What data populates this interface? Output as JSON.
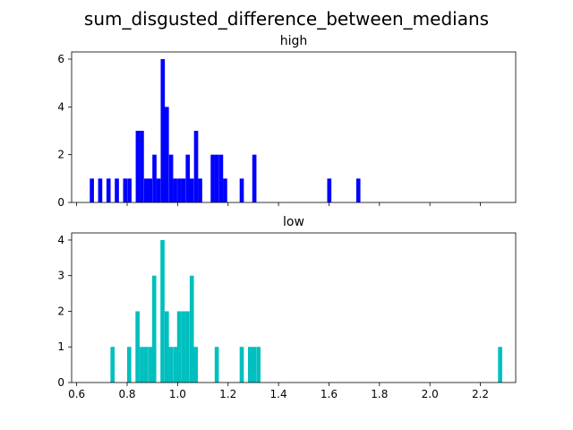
{
  "chart_data": [
    {
      "type": "bar",
      "subplot": "top",
      "suptitle": "sum_disgusted_difference_between_medians",
      "title": "high",
      "color": "#0000ff",
      "xlim": [
        0.58,
        2.34
      ],
      "ylim": [
        0,
        6.3
      ],
      "bin_width": 0.0165,
      "xticks": [
        0.6,
        0.8,
        1.0,
        1.2,
        1.4,
        1.6,
        1.8,
        2.0,
        2.2
      ],
      "xtick_labels_visible": false,
      "yticks": [
        0,
        2,
        4,
        6
      ],
      "ytick_labels": [
        "0",
        "2",
        "4",
        "6"
      ],
      "bars": [
        {
          "x": 0.652,
          "y": 1
        },
        {
          "x": 0.685,
          "y": 1
        },
        {
          "x": 0.718,
          "y": 1
        },
        {
          "x": 0.751,
          "y": 1
        },
        {
          "x": 0.784,
          "y": 1
        },
        {
          "x": 0.801,
          "y": 1
        },
        {
          "x": 0.834,
          "y": 3
        },
        {
          "x": 0.85,
          "y": 3
        },
        {
          "x": 0.867,
          "y": 1
        },
        {
          "x": 0.883,
          "y": 1
        },
        {
          "x": 0.9,
          "y": 2
        },
        {
          "x": 0.916,
          "y": 1
        },
        {
          "x": 0.933,
          "y": 6
        },
        {
          "x": 0.949,
          "y": 4
        },
        {
          "x": 0.966,
          "y": 2
        },
        {
          "x": 0.982,
          "y": 1
        },
        {
          "x": 0.999,
          "y": 1
        },
        {
          "x": 1.015,
          "y": 1
        },
        {
          "x": 1.032,
          "y": 2
        },
        {
          "x": 1.048,
          "y": 1
        },
        {
          "x": 1.065,
          "y": 3
        },
        {
          "x": 1.081,
          "y": 1
        },
        {
          "x": 1.131,
          "y": 2
        },
        {
          "x": 1.147,
          "y": 2
        },
        {
          "x": 1.164,
          "y": 2
        },
        {
          "x": 1.18,
          "y": 1
        },
        {
          "x": 1.246,
          "y": 1
        },
        {
          "x": 1.296,
          "y": 2
        },
        {
          "x": 1.593,
          "y": 1
        },
        {
          "x": 1.708,
          "y": 1
        }
      ]
    },
    {
      "type": "bar",
      "subplot": "bottom",
      "title": "low",
      "color": "#00bfbf",
      "xlim": [
        0.58,
        2.34
      ],
      "ylim": [
        0,
        4.2
      ],
      "bin_width": 0.0165,
      "xticks": [
        0.6,
        0.8,
        1.0,
        1.2,
        1.4,
        1.6,
        1.8,
        2.0,
        2.2
      ],
      "xtick_labels": [
        "0.6",
        "0.8",
        "1.0",
        "1.2",
        "1.4",
        "1.6",
        "1.8",
        "2.0",
        "2.2"
      ],
      "yticks": [
        0,
        1,
        2,
        3,
        4
      ],
      "ytick_labels": [
        "0",
        "1",
        "2",
        "3",
        "4"
      ],
      "bars": [
        {
          "x": 0.734,
          "y": 1
        },
        {
          "x": 0.8,
          "y": 1
        },
        {
          "x": 0.833,
          "y": 2
        },
        {
          "x": 0.85,
          "y": 1
        },
        {
          "x": 0.866,
          "y": 1
        },
        {
          "x": 0.883,
          "y": 1
        },
        {
          "x": 0.899,
          "y": 3
        },
        {
          "x": 0.932,
          "y": 4
        },
        {
          "x": 0.949,
          "y": 2
        },
        {
          "x": 0.965,
          "y": 1
        },
        {
          "x": 0.982,
          "y": 1
        },
        {
          "x": 0.998,
          "y": 2
        },
        {
          "x": 1.015,
          "y": 2
        },
        {
          "x": 1.031,
          "y": 2
        },
        {
          "x": 1.048,
          "y": 3
        },
        {
          "x": 1.064,
          "y": 1
        },
        {
          "x": 1.147,
          "y": 1
        },
        {
          "x": 1.246,
          "y": 1
        },
        {
          "x": 1.279,
          "y": 1
        },
        {
          "x": 1.295,
          "y": 1
        },
        {
          "x": 1.312,
          "y": 1
        },
        {
          "x": 2.27,
          "y": 1
        }
      ]
    }
  ]
}
